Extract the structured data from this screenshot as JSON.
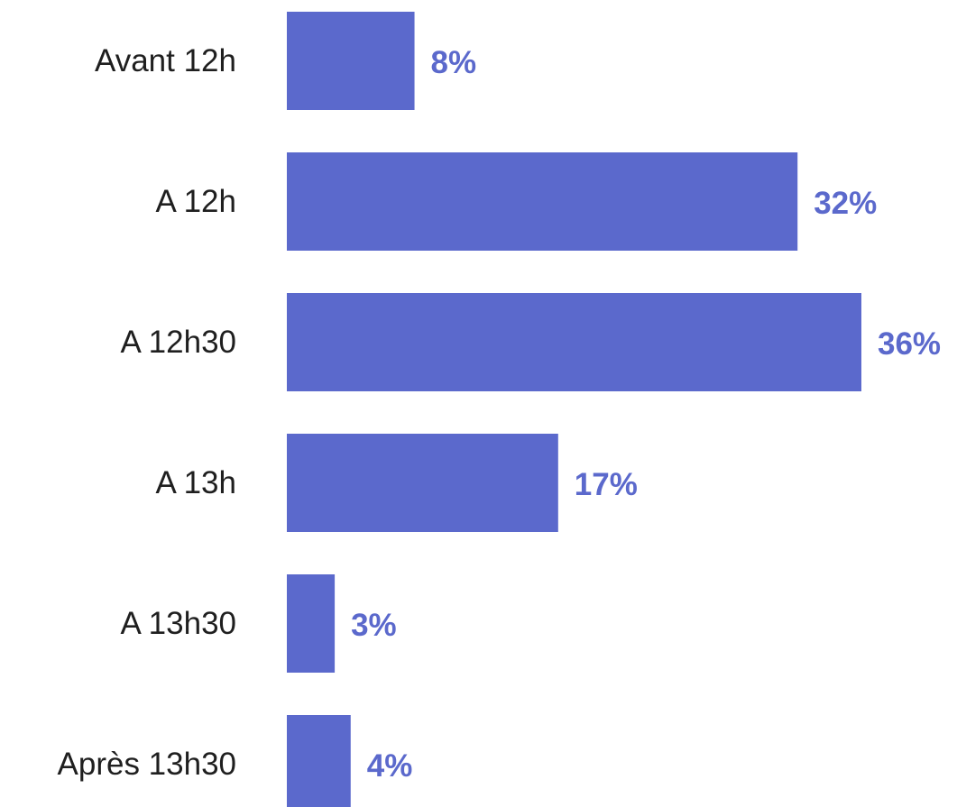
{
  "chart_data": {
    "type": "bar",
    "orientation": "horizontal",
    "categories": [
      "Avant 12h",
      "A 12h",
      "A 12h30",
      "A 13h",
      "A 13h30",
      "Après 13h30"
    ],
    "values": [
      8,
      32,
      36,
      17,
      3,
      4
    ],
    "value_labels": [
      "8%",
      "32%",
      "36%",
      "17%",
      "3%",
      "4%"
    ],
    "unit": "%",
    "title": "",
    "xlabel": "",
    "ylabel": "",
    "xlim": [
      0,
      36
    ],
    "grid": false,
    "legend": "none",
    "colors": {
      "bar": "#5b69cc",
      "value_label": "#5b69cc",
      "category_label": "#1f1f1f"
    }
  }
}
